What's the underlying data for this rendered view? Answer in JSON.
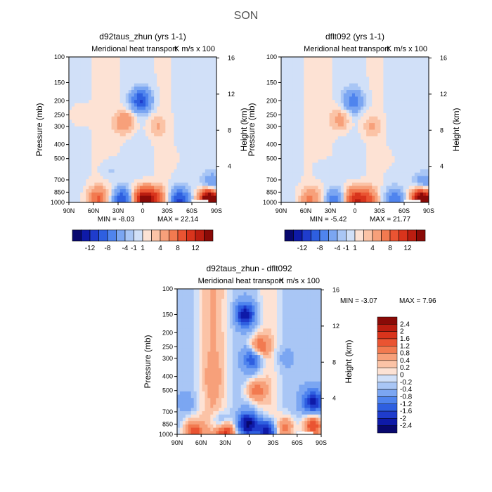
{
  "figure": {
    "title": "SON"
  },
  "colors": {
    "neg": [
      "#08086e",
      "#0e1aa8",
      "#1f3ccc",
      "#2e5fe0",
      "#4f84ee",
      "#7ba6f2",
      "#a9c6f5",
      "#d1e0f8"
    ],
    "pos": [
      "#fde2d4",
      "#fbc3a6",
      "#f7a07a",
      "#f27a50",
      "#ea5432",
      "#d9341c",
      "#bb1d10",
      "#8a0a07"
    ]
  },
  "chart_data": [
    {
      "type": "heatmap",
      "title": "d92taus_zhun (yrs 1-1)",
      "subtitle": "Meridional heat transport",
      "units_label": "K m/s x 100",
      "xlabel": "",
      "ylabel": "Pressure (mb)",
      "y2label": "Height (km)",
      "xticks": [
        "90N",
        "60N",
        "30N",
        "0",
        "30S",
        "60S",
        "90S"
      ],
      "yticks": [
        "100",
        "150",
        "200",
        "250",
        "300",
        "400",
        "500",
        "700",
        "850",
        "1000"
      ],
      "y2ticks": [
        "16",
        "12",
        "8",
        "4"
      ],
      "min_text": "MIN =   -8.03",
      "max_text": "MAX =   22.14",
      "colorbar_labels": [
        "-12",
        "-8",
        "-4",
        "-1",
        "1",
        "4",
        "8",
        "12"
      ],
      "blobs": [
        {
          "lat": 22,
          "p": 280,
          "v": 4
        },
        {
          "lat": 2,
          "p": 200,
          "v": -8
        },
        {
          "lat": -18,
          "p": 300,
          "v": 2
        },
        {
          "lat": 55,
          "p": 950,
          "v": 6
        },
        {
          "lat": 25,
          "p": 960,
          "v": -8
        },
        {
          "lat": 0,
          "p": 950,
          "v": 12
        },
        {
          "lat": -15,
          "p": 950,
          "v": 8
        },
        {
          "lat": -45,
          "p": 960,
          "v": -8
        },
        {
          "lat": -82,
          "p": 960,
          "v": 22
        },
        {
          "lat": -84,
          "p": 780,
          "v": -6
        },
        {
          "lat": 78,
          "p": 250,
          "v": 1
        },
        {
          "lat": 40,
          "p": 600,
          "v": -1.5
        },
        {
          "lat": -35,
          "p": 500,
          "v": 0.5
        }
      ]
    },
    {
      "type": "heatmap",
      "title": "dflt092 (yrs 1-1)",
      "subtitle": "Meridional heat transport",
      "units_label": "K m/s x 100",
      "xlabel": "",
      "ylabel": "Pressure (mb)",
      "y2label": "Height (km)",
      "xticks": [
        "90N",
        "60N",
        "30N",
        "0",
        "30S",
        "60S",
        "90S"
      ],
      "yticks": [
        "100",
        "150",
        "200",
        "250",
        "300",
        "400",
        "500",
        "700",
        "850",
        "1000"
      ],
      "y2ticks": [
        "16",
        "12",
        "8",
        "4"
      ],
      "min_text": "MIN =   -5.42",
      "max_text": "MAX =   21.77",
      "colorbar_labels": [
        "-12",
        "-8",
        "-4",
        "-1",
        "1",
        "4",
        "8",
        "12"
      ],
      "blobs": [
        {
          "lat": 18,
          "p": 270,
          "v": 3
        },
        {
          "lat": 2,
          "p": 200,
          "v": -5
        },
        {
          "lat": -20,
          "p": 300,
          "v": 2
        },
        {
          "lat": 55,
          "p": 950,
          "v": 4
        },
        {
          "lat": 25,
          "p": 960,
          "v": -5
        },
        {
          "lat": 0,
          "p": 950,
          "v": 9
        },
        {
          "lat": -15,
          "p": 950,
          "v": 6
        },
        {
          "lat": -48,
          "p": 960,
          "v": -5
        },
        {
          "lat": -82,
          "p": 960,
          "v": 21
        },
        {
          "lat": -84,
          "p": 780,
          "v": -5
        },
        {
          "lat": 40,
          "p": 600,
          "v": -1.2
        },
        {
          "lat": -40,
          "p": 500,
          "v": 0.5
        }
      ]
    },
    {
      "type": "heatmap",
      "title": "d92taus_zhun - dflt092",
      "subtitle": "Meridional heat transport",
      "units_label": "K m/s x 100",
      "xlabel": "",
      "ylabel": "Pressure (mb)",
      "y2label": "Height (km)",
      "xticks": [
        "90N",
        "60N",
        "30N",
        "0",
        "30S",
        "60S",
        "90S"
      ],
      "yticks": [
        "100",
        "150",
        "200",
        "250",
        "300",
        "400",
        "500",
        "700",
        "850",
        "1000"
      ],
      "y2ticks": [
        "16",
        "12",
        "8",
        "4"
      ],
      "min_text": "MIN =   -3.07",
      "max_text": "MAX =    7.96",
      "colorbar_labels": [
        "2.4",
        "2",
        "1.6",
        "1.2",
        "0.8",
        "0.4",
        "0.2",
        "0",
        "-0.2",
        "-0.4",
        "-0.8",
        "-1.2",
        "-1.6",
        "-2",
        "-2.4"
      ],
      "blobs": [
        {
          "lat": 5,
          "p": 150,
          "v": -2.2
        },
        {
          "lat": -5,
          "p": 300,
          "v": -1.6
        },
        {
          "lat": -12,
          "p": 250,
          "v": 1.6
        },
        {
          "lat": -8,
          "p": 500,
          "v": 1.4
        },
        {
          "lat": 2,
          "p": 850,
          "v": -2.5
        },
        {
          "lat": 35,
          "p": 850,
          "v": -1.4
        },
        {
          "lat": 70,
          "p": 950,
          "v": 1.8
        },
        {
          "lat": 30,
          "p": 960,
          "v": 2.4
        },
        {
          "lat": -22,
          "p": 950,
          "v": -2.6
        },
        {
          "lat": -45,
          "p": 900,
          "v": 1.4
        },
        {
          "lat": -80,
          "p": 880,
          "v": 2.2
        },
        {
          "lat": -80,
          "p": 600,
          "v": -2.0
        },
        {
          "lat": 45,
          "p": 400,
          "v": 0.3
        },
        {
          "lat": -40,
          "p": 300,
          "v": -0.3
        },
        {
          "lat": 75,
          "p": 600,
          "v": -0.3
        }
      ]
    }
  ]
}
